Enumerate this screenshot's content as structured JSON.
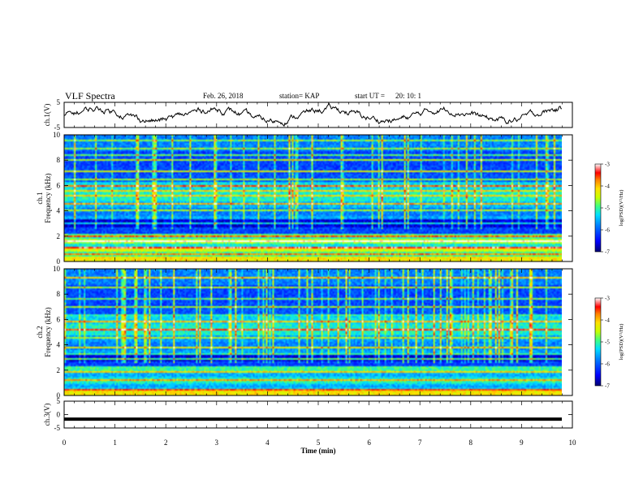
{
  "header": {
    "title": "VLF Spectra",
    "date": "Feb. 26, 2018",
    "station": "station= KAP",
    "start_label": "start  UT  =",
    "start_value": "20: 10: 1"
  },
  "colors": {
    "trace": "#000000",
    "colormap": [
      "#000070",
      "#0000ff",
      "#0080ff",
      "#00e0ff",
      "#40ff80",
      "#c8ff00",
      "#ffe000",
      "#ff8000",
      "#ff0000",
      "#ffffff"
    ]
  },
  "chart_data": [
    {
      "type": "line",
      "panel": "ch1-voltage",
      "ylabel": "ch.1(V)",
      "ylim": [
        -5,
        5
      ],
      "yticks": [
        "5",
        "-5"
      ],
      "xlim": [
        0,
        10
      ],
      "note_values": "noisy trace centered near 0 V, amplitude about ±2 V"
    },
    {
      "type": "heatmap",
      "panel": "ch1-spectrogram",
      "ylabel": "ch.1\nFrequency (kHz)",
      "ylim": [
        0,
        10
      ],
      "yticks": [
        "0",
        "2",
        "4",
        "6",
        "8",
        "10"
      ],
      "xlim": [
        0,
        10
      ],
      "colorbar": {
        "label": "log(PSD)(V²/Hz)",
        "ticks": [
          "-3",
          "-4",
          "-5",
          "-6",
          "-7"
        ],
        "range": [
          -7,
          -3
        ]
      }
    },
    {
      "type": "heatmap",
      "panel": "ch2-spectrogram",
      "ylabel": "ch.2\nFrequency (kHz)",
      "ylim": [
        0,
        10
      ],
      "yticks": [
        "0",
        "2",
        "4",
        "6",
        "8",
        "10"
      ],
      "xlim": [
        0,
        10
      ],
      "colorbar": {
        "label": "log(PSD)(V²/Hz)",
        "ticks": [
          "-3",
          "-4",
          "-5",
          "-6",
          "-7"
        ],
        "range": [
          -7,
          -3
        ]
      }
    },
    {
      "type": "line",
      "panel": "ch3-voltage",
      "ylabel": "ch.3(V)",
      "ylim": [
        -5,
        5
      ],
      "yticks": [
        "5",
        "0",
        "-5"
      ],
      "xlim": [
        0,
        10
      ],
      "constant_value": -1.7
    }
  ],
  "xaxis": {
    "label": "Time  (min)",
    "ticks": [
      "0",
      "1",
      "2",
      "3",
      "4",
      "5",
      "6",
      "7",
      "8",
      "9",
      "10"
    ]
  }
}
